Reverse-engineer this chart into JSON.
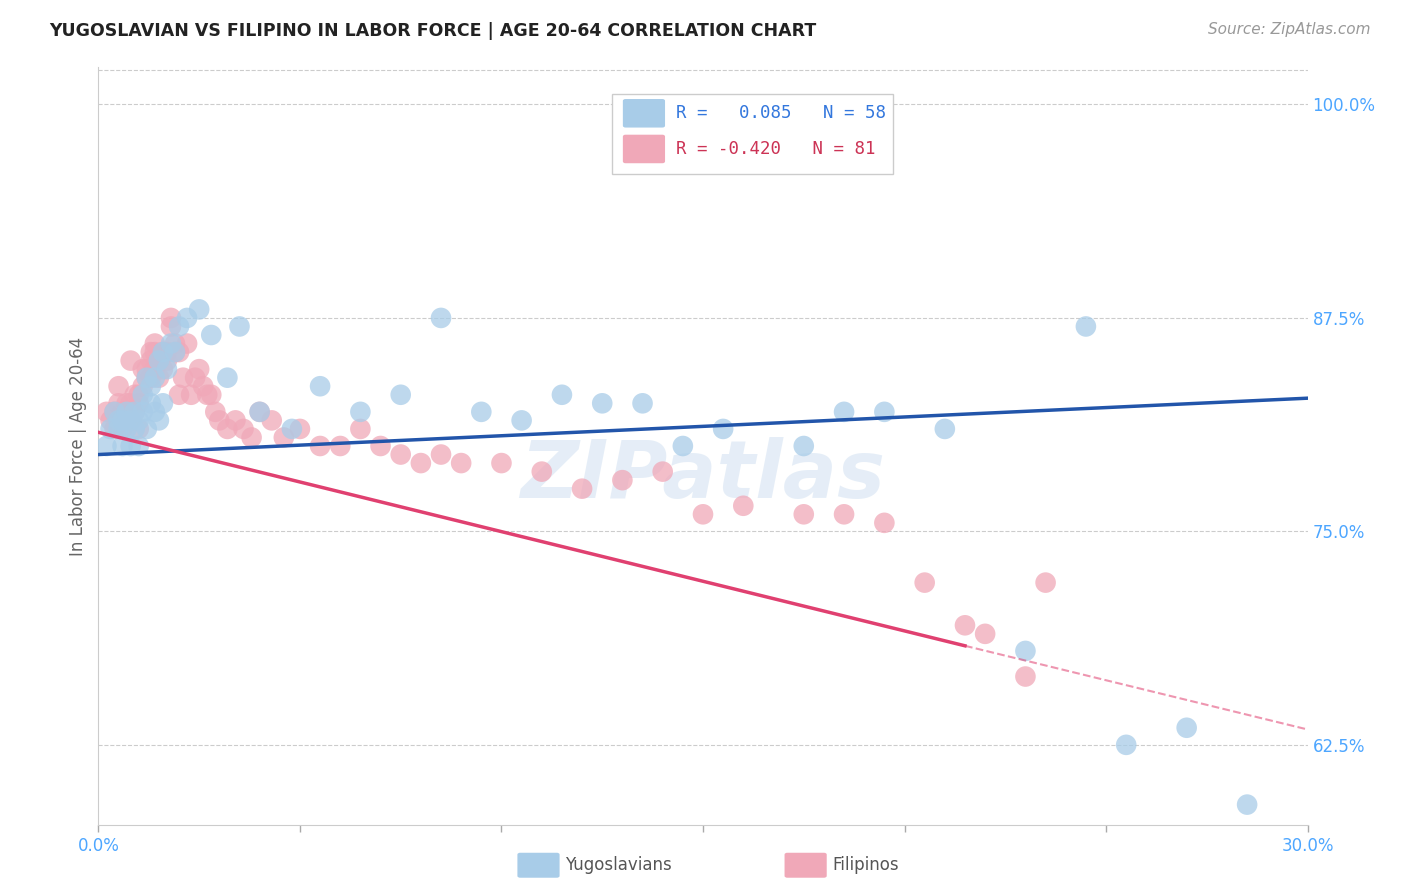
{
  "title": "YUGOSLAVIAN VS FILIPINO IN LABOR FORCE | AGE 20-64 CORRELATION CHART",
  "source": "Source: ZipAtlas.com",
  "ylabel": "In Labor Force | Age 20-64",
  "xlim": [
    0.0,
    0.3
  ],
  "ylim": [
    0.578,
    1.022
  ],
  "yticks": [
    0.625,
    0.75,
    0.875,
    1.0
  ],
  "ytick_labels": [
    "62.5%",
    "75.0%",
    "87.5%",
    "100.0%"
  ],
  "xticks": [
    0.0,
    0.05,
    0.1,
    0.15,
    0.2,
    0.25,
    0.3
  ],
  "xtick_labels": [
    "0.0%",
    "",
    "",
    "",
    "",
    "",
    "30.0%"
  ],
  "legend_blue_r": "0.085",
  "legend_blue_n": "58",
  "legend_pink_r": "-0.420",
  "legend_pink_n": "81",
  "blue_color": "#a8cce8",
  "pink_color": "#f0a8b8",
  "blue_line_color": "#2255aa",
  "pink_line_color": "#e04070",
  "watermark": "ZIPatlas",
  "blue_line_x0": 0.0,
  "blue_line_y0": 0.795,
  "blue_line_x1": 0.3,
  "blue_line_y1": 0.828,
  "pink_line_x0": 0.0,
  "pink_line_y0": 0.808,
  "pink_line_solid_x1": 0.215,
  "pink_line_solid_y1": 0.683,
  "pink_line_dash_x1": 0.3,
  "pink_line_dash_y1": 0.634,
  "blue_scatter_x": [
    0.002,
    0.003,
    0.004,
    0.005,
    0.005,
    0.006,
    0.006,
    0.007,
    0.007,
    0.008,
    0.008,
    0.009,
    0.009,
    0.01,
    0.01,
    0.011,
    0.011,
    0.012,
    0.012,
    0.013,
    0.013,
    0.014,
    0.014,
    0.015,
    0.015,
    0.016,
    0.016,
    0.017,
    0.018,
    0.019,
    0.02,
    0.022,
    0.025,
    0.028,
    0.032,
    0.035,
    0.04,
    0.048,
    0.055,
    0.065,
    0.075,
    0.085,
    0.095,
    0.105,
    0.115,
    0.125,
    0.135,
    0.145,
    0.155,
    0.175,
    0.185,
    0.195,
    0.21,
    0.23,
    0.245,
    0.255,
    0.27,
    0.285
  ],
  "blue_scatter_y": [
    0.8,
    0.81,
    0.82,
    0.815,
    0.81,
    0.8,
    0.815,
    0.82,
    0.81,
    0.815,
    0.8,
    0.81,
    0.82,
    0.8,
    0.815,
    0.83,
    0.82,
    0.84,
    0.81,
    0.835,
    0.825,
    0.84,
    0.82,
    0.85,
    0.815,
    0.855,
    0.825,
    0.845,
    0.86,
    0.855,
    0.87,
    0.875,
    0.88,
    0.865,
    0.84,
    0.87,
    0.82,
    0.81,
    0.835,
    0.82,
    0.83,
    0.875,
    0.82,
    0.815,
    0.83,
    0.825,
    0.825,
    0.8,
    0.81,
    0.8,
    0.82,
    0.82,
    0.81,
    0.68,
    0.87,
    0.625,
    0.635,
    0.59
  ],
  "pink_scatter_x": [
    0.002,
    0.003,
    0.004,
    0.004,
    0.005,
    0.005,
    0.006,
    0.006,
    0.007,
    0.007,
    0.008,
    0.008,
    0.008,
    0.009,
    0.009,
    0.01,
    0.01,
    0.01,
    0.011,
    0.011,
    0.012,
    0.012,
    0.013,
    0.013,
    0.013,
    0.014,
    0.014,
    0.014,
    0.015,
    0.015,
    0.016,
    0.016,
    0.017,
    0.017,
    0.018,
    0.018,
    0.019,
    0.019,
    0.02,
    0.02,
    0.021,
    0.022,
    0.023,
    0.024,
    0.025,
    0.026,
    0.027,
    0.028,
    0.029,
    0.03,
    0.032,
    0.034,
    0.036,
    0.038,
    0.04,
    0.043,
    0.046,
    0.05,
    0.055,
    0.06,
    0.065,
    0.07,
    0.075,
    0.08,
    0.085,
    0.09,
    0.1,
    0.11,
    0.12,
    0.13,
    0.14,
    0.15,
    0.16,
    0.175,
    0.185,
    0.195,
    0.205,
    0.215,
    0.22,
    0.23,
    0.235
  ],
  "pink_scatter_y": [
    0.82,
    0.815,
    0.81,
    0.82,
    0.825,
    0.835,
    0.82,
    0.81,
    0.825,
    0.82,
    0.815,
    0.825,
    0.85,
    0.82,
    0.83,
    0.81,
    0.825,
    0.83,
    0.835,
    0.845,
    0.84,
    0.845,
    0.85,
    0.855,
    0.84,
    0.86,
    0.845,
    0.855,
    0.84,
    0.85,
    0.855,
    0.845,
    0.85,
    0.855,
    0.875,
    0.87,
    0.855,
    0.86,
    0.855,
    0.83,
    0.84,
    0.86,
    0.83,
    0.84,
    0.845,
    0.835,
    0.83,
    0.83,
    0.82,
    0.815,
    0.81,
    0.815,
    0.81,
    0.805,
    0.82,
    0.815,
    0.805,
    0.81,
    0.8,
    0.8,
    0.81,
    0.8,
    0.795,
    0.79,
    0.795,
    0.79,
    0.79,
    0.785,
    0.775,
    0.78,
    0.785,
    0.76,
    0.765,
    0.76,
    0.76,
    0.755,
    0.72,
    0.695,
    0.69,
    0.665,
    0.72
  ]
}
